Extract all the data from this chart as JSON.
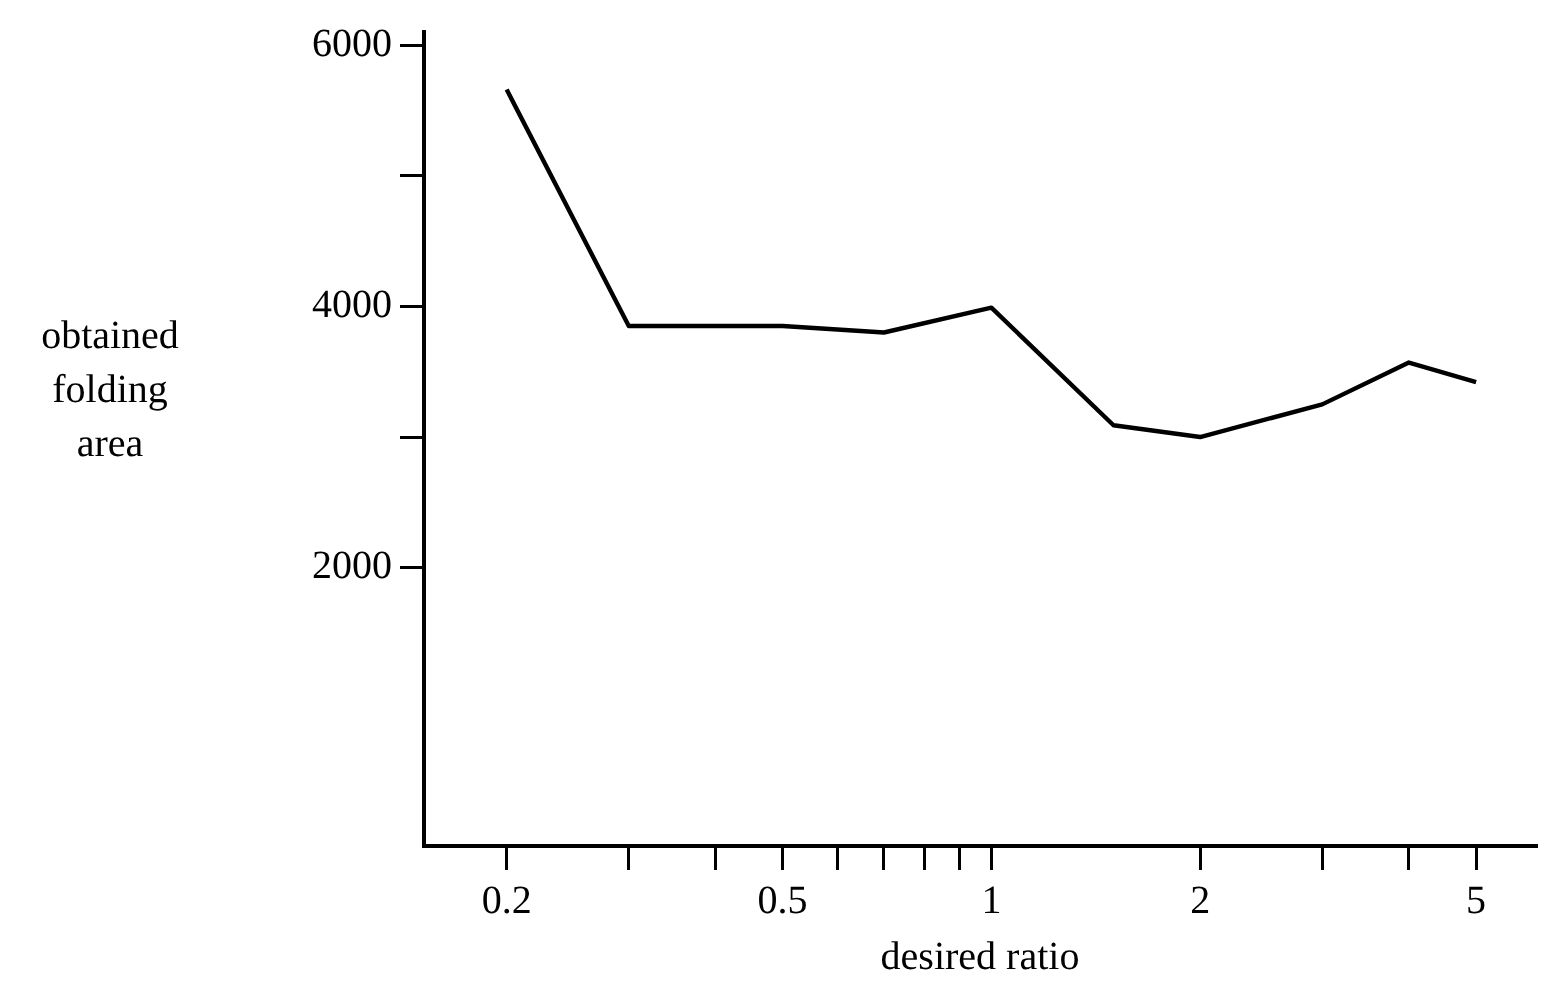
{
  "chart_data": {
    "type": "line",
    "xlabel": "desired ratio",
    "ylabel": "obtained folding area",
    "log": "x",
    "color": "#000000",
    "grid": false,
    "marker": "none",
    "line_style": "solid",
    "x": [
      0.2,
      0.3,
      0.5,
      0.7,
      1,
      1.5,
      2,
      3,
      4,
      5
    ],
    "values": [
      5660,
      3850,
      3850,
      3800,
      3990,
      3090,
      3000,
      3250,
      3570,
      3420
    ],
    "xlim": [
      0.152,
      6.1
    ],
    "xticks": [
      0.2,
      {
        "value": 0.3,
        "label": null
      },
      {
        "value": 0.4,
        "label": null
      },
      0.5,
      {
        "value": 0.6,
        "label": null
      },
      {
        "value": 0.7,
        "label": null
      },
      {
        "value": 0.8,
        "label": null
      },
      {
        "value": 0.9,
        "label": null
      },
      1,
      2,
      {
        "value": 3,
        "label": null
      },
      {
        "value": 4,
        "label": null
      },
      5
    ],
    "ylim": [
      -130,
      6100
    ],
    "yticks": [
      2000,
      {
        "value": 3000,
        "label": null
      },
      4000,
      {
        "value": 5000,
        "label": null
      },
      6000
    ]
  }
}
